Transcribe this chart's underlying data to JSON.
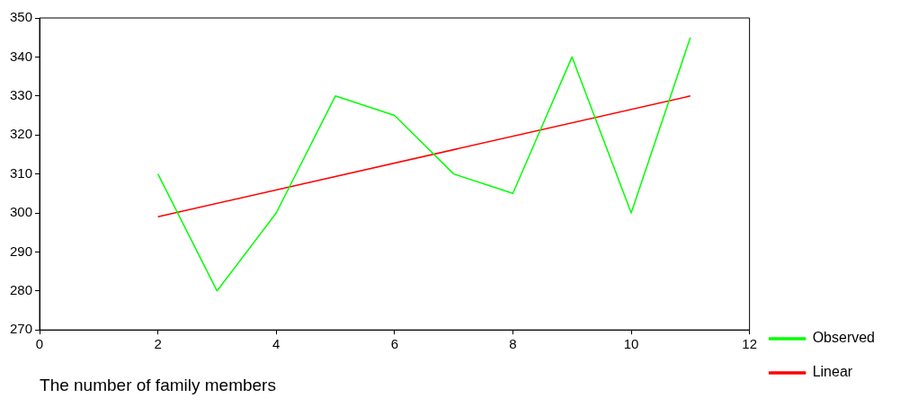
{
  "chart_data": {
    "type": "line",
    "xlabel": "The number of family members",
    "xlim": [
      0,
      12
    ],
    "xticks": [
      0,
      2,
      4,
      6,
      8,
      10,
      12
    ],
    "ylim": [
      270,
      350
    ],
    "yticks": [
      270,
      280,
      290,
      300,
      310,
      320,
      330,
      340,
      350
    ],
    "grid": false,
    "legend": "right",
    "series": [
      {
        "name": "Observed",
        "color": "#00ff00",
        "x": [
          2,
          3,
          4,
          5,
          6,
          7,
          8,
          9,
          10,
          11
        ],
        "values": [
          310,
          280,
          300,
          330,
          325,
          310,
          305,
          340,
          300,
          345
        ]
      },
      {
        "name": "Linear",
        "color": "#ff0000",
        "x": [
          2,
          11
        ],
        "values": [
          299,
          330
        ]
      }
    ]
  }
}
